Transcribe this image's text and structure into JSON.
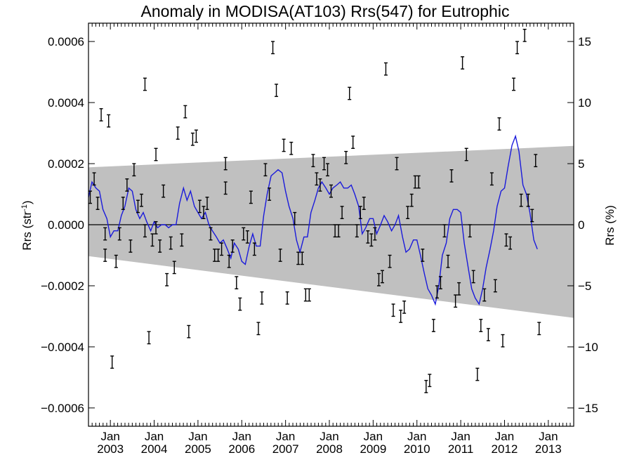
{
  "chart_data": {
    "type": "errorbar-line",
    "title": "Anomaly in MODISA(AT103) Rrs(547) for Eutrophic",
    "ylabel_left": "Rrs (str⁻¹)",
    "ylabel_right": "Rrs (%)",
    "xlim": [
      2002.5,
      2013.58
    ],
    "ylim_left": [
      -0.00066,
      0.00066
    ],
    "ylim_right": [
      -16.5,
      16.5
    ],
    "x_ticks": [
      {
        "top": "Jan",
        "bottom": "2003",
        "x": 2003
      },
      {
        "top": "Jan",
        "bottom": "2004",
        "x": 2004
      },
      {
        "top": "Jan",
        "bottom": "2005",
        "x": 2005
      },
      {
        "top": "Jan",
        "bottom": "2006",
        "x": 2006
      },
      {
        "top": "Jan",
        "bottom": "2007",
        "x": 2007
      },
      {
        "top": "Jan",
        "bottom": "2008",
        "x": 2008
      },
      {
        "top": "Jan",
        "bottom": "2009",
        "x": 2009
      },
      {
        "top": "Jan",
        "bottom": "2010",
        "x": 2010
      },
      {
        "top": "Jan",
        "bottom": "2011",
        "x": 2011
      },
      {
        "top": "Jan",
        "bottom": "2012",
        "x": 2012
      },
      {
        "top": "Jan",
        "bottom": "2013",
        "x": 2013
      }
    ],
    "y_ticks_left": [
      {
        "v": 0.0006,
        "label": "0.0006"
      },
      {
        "v": 0.0004,
        "label": "0.0004"
      },
      {
        "v": 0.0002,
        "label": "0.0002"
      },
      {
        "v": 0.0,
        "label": "0.0000"
      },
      {
        "v": -0.0002,
        "label": "−0.0002"
      },
      {
        "v": -0.0004,
        "label": "−0.0004"
      },
      {
        "v": -0.0006,
        "label": "−0.0006"
      }
    ],
    "y_ticks_right": [
      {
        "v": 15,
        "label": "15"
      },
      {
        "v": 10,
        "label": "10"
      },
      {
        "v": 5,
        "label": "5"
      },
      {
        "v": 0,
        "label": "0"
      },
      {
        "v": -5,
        "label": "−5"
      },
      {
        "v": -10,
        "label": "−10"
      },
      {
        "v": -15,
        "label": "−15"
      }
    ],
    "band": {
      "x": [
        2002.5,
        2013.58
      ],
      "upper": [
        0.000188,
        0.000258
      ],
      "lower": [
        -0.000103,
        -0.000305
      ]
    },
    "zero_line": 0,
    "colors": {
      "band": "#c0c0c0",
      "line": "#1a1adb",
      "errorbar": "#000000",
      "zero": "#000000"
    },
    "error_half_width": 2e-05,
    "anomaly_points": [
      [
        2002.54,
        9e-05
      ],
      [
        2002.63,
        0.00015
      ],
      [
        2002.71,
        7e-05
      ],
      [
        2002.79,
        0.00036
      ],
      [
        2002.88,
        -3e-05
      ],
      [
        2002.88,
        -0.0001
      ],
      [
        2002.96,
        0.00034
      ],
      [
        2003.04,
        -0.00045
      ],
      [
        2003.13,
        -0.00012
      ],
      [
        2003.21,
        -3e-05
      ],
      [
        2003.29,
        7e-05
      ],
      [
        2003.38,
        0.00013
      ],
      [
        2003.46,
        -7e-05
      ],
      [
        2003.54,
        0.00018
      ],
      [
        2003.63,
        6e-05
      ],
      [
        2003.71,
        8e-05
      ],
      [
        2003.79,
        0.00046
      ],
      [
        2003.79,
        -2e-05
      ],
      [
        2003.88,
        -0.00037
      ],
      [
        2003.96,
        -5e-05
      ],
      [
        2004.04,
        0.00023
      ],
      [
        2004.04,
        -1e-05
      ],
      [
        2004.13,
        -7e-05
      ],
      [
        2004.21,
        0.00011
      ],
      [
        2004.29,
        -0.00018
      ],
      [
        2004.38,
        -6e-05
      ],
      [
        2004.46,
        -0.00014
      ],
      [
        2004.54,
        0.0003
      ],
      [
        2004.63,
        -5e-05
      ],
      [
        2004.71,
        0.00037
      ],
      [
        2004.79,
        -0.00035
      ],
      [
        2004.88,
        0.00028
      ],
      [
        2004.96,
        0.00029
      ],
      [
        2005.04,
        6e-05
      ],
      [
        2005.13,
        4e-05
      ],
      [
        2005.21,
        7e-05
      ],
      [
        2005.29,
        -3e-05
      ],
      [
        2005.38,
        -0.0001
      ],
      [
        2005.46,
        -0.0001
      ],
      [
        2005.54,
        -8e-05
      ],
      [
        2005.63,
        0.00012
      ],
      [
        2005.63,
        0.0002
      ],
      [
        2005.71,
        -0.00012
      ],
      [
        2005.79,
        -7e-05
      ],
      [
        2005.88,
        -0.00019
      ],
      [
        2005.96,
        -0.00026
      ],
      [
        2006.04,
        -3e-05
      ],
      [
        2006.13,
        -4e-05
      ],
      [
        2006.21,
        9e-05
      ],
      [
        2006.29,
        -8e-05
      ],
      [
        2006.38,
        -0.00034
      ],
      [
        2006.46,
        -0.00024
      ],
      [
        2006.54,
        0.00018
      ],
      [
        2006.63,
        0.0001
      ],
      [
        2006.71,
        0.00058
      ],
      [
        2006.79,
        0.00044
      ],
      [
        2006.88,
        -0.0001
      ],
      [
        2006.96,
        0.00026
      ],
      [
        2007.04,
        -0.00024
      ],
      [
        2007.13,
        0.00025
      ],
      [
        2007.21,
        2e-05
      ],
      [
        2007.29,
        -0.00011
      ],
      [
        2007.38,
        -0.00011
      ],
      [
        2007.46,
        -0.00023
      ],
      [
        2007.54,
        -0.00023
      ],
      [
        2007.63,
        0.00021
      ],
      [
        2007.71,
        0.00015
      ],
      [
        2007.79,
        0.00013
      ],
      [
        2007.88,
        0.0002
      ],
      [
        2007.96,
        0.00018
      ],
      [
        2008.04,
        0.00011
      ],
      [
        2008.13,
        -2e-05
      ],
      [
        2008.21,
        -2e-05
      ],
      [
        2008.29,
        4e-05
      ],
      [
        2008.38,
        0.00022
      ],
      [
        2008.46,
        0.00043
      ],
      [
        2008.54,
        0.00027
      ],
      [
        2008.63,
        -2e-05
      ],
      [
        2008.71,
        4e-05
      ],
      [
        2008.79,
        7e-05
      ],
      [
        2008.88,
        -4e-05
      ],
      [
        2008.96,
        -5e-05
      ],
      [
        2009.04,
        -3e-05
      ],
      [
        2009.13,
        -0.00018
      ],
      [
        2009.21,
        -0.00017
      ],
      [
        2009.29,
        0.00051
      ],
      [
        2009.38,
        -0.00012
      ],
      [
        2009.46,
        -0.00028
      ],
      [
        2009.54,
        0.0002
      ],
      [
        2009.63,
        -0.0003
      ],
      [
        2009.71,
        -0.00027
      ],
      [
        2009.79,
        4e-05
      ],
      [
        2009.88,
        8e-05
      ],
      [
        2009.96,
        0.00014
      ],
      [
        2010.04,
        0.00014
      ],
      [
        2010.13,
        -0.0001
      ],
      [
        2010.21,
        -0.00053
      ],
      [
        2010.29,
        -0.00051
      ],
      [
        2010.38,
        -0.00033
      ],
      [
        2010.46,
        -0.00022
      ],
      [
        2010.54,
        -0.00019
      ],
      [
        2010.63,
        -2e-05
      ],
      [
        2010.71,
        -0.00012
      ],
      [
        2010.79,
        0.00016
      ],
      [
        2010.88,
        -0.00025
      ],
      [
        2010.96,
        -0.00021
      ],
      [
        2011.04,
        0.00053
      ],
      [
        2011.13,
        0.00023
      ],
      [
        2011.21,
        -2e-05
      ],
      [
        2011.29,
        -0.00017
      ],
      [
        2011.38,
        -0.00049
      ],
      [
        2011.46,
        -0.00033
      ],
      [
        2011.54,
        -0.00023
      ],
      [
        2011.63,
        -0.00036
      ],
      [
        2011.71,
        0.00015
      ],
      [
        2011.79,
        -0.0002
      ],
      [
        2011.88,
        0.00033
      ],
      [
        2011.96,
        -0.00038
      ],
      [
        2012.04,
        -5e-05
      ],
      [
        2012.13,
        -6e-05
      ],
      [
        2012.21,
        0.00046
      ],
      [
        2012.29,
        0.00058
      ],
      [
        2012.38,
        8e-05
      ],
      [
        2012.46,
        0.00062
      ],
      [
        2012.54,
        8e-05
      ],
      [
        2012.63,
        3e-05
      ],
      [
        2012.71,
        0.00021
      ],
      [
        2012.79,
        -0.00034
      ]
    ],
    "running_mean": [
      [
        2002.5,
        9e-05
      ],
      [
        2002.58,
        0.00014
      ],
      [
        2002.67,
        0.00012
      ],
      [
        2002.75,
        0.00011
      ],
      [
        2002.83,
        5e-05
      ],
      [
        2002.92,
        2e-05
      ],
      [
        2003.0,
        -4e-05
      ],
      [
        2003.08,
        -2e-05
      ],
      [
        2003.17,
        -2e-05
      ],
      [
        2003.25,
        3e-05
      ],
      [
        2003.33,
        6e-05
      ],
      [
        2003.42,
        0.00012
      ],
      [
        2003.5,
        0.00011
      ],
      [
        2003.58,
        5e-05
      ],
      [
        2003.67,
        2e-05
      ],
      [
        2003.75,
        4e-05
      ],
      [
        2003.83,
        1e-05
      ],
      [
        2003.92,
        -2e-05
      ],
      [
        2004.0,
        1e-05
      ],
      [
        2004.08,
        -1e-05
      ],
      [
        2004.17,
        0.0
      ],
      [
        2004.25,
        0.0
      ],
      [
        2004.33,
        -1e-05
      ],
      [
        2004.42,
        0.0
      ],
      [
        2004.5,
        0.0
      ],
      [
        2004.58,
        7e-05
      ],
      [
        2004.67,
        0.00012
      ],
      [
        2004.75,
        8e-05
      ],
      [
        2004.83,
        0.00011
      ],
      [
        2004.92,
        6e-05
      ],
      [
        2005.0,
        4e-05
      ],
      [
        2005.08,
        2e-05
      ],
      [
        2005.17,
        4e-05
      ],
      [
        2005.25,
        0.0
      ],
      [
        2005.33,
        -2e-05
      ],
      [
        2005.42,
        -4e-05
      ],
      [
        2005.5,
        -6e-05
      ],
      [
        2005.58,
        -5e-05
      ],
      [
        2005.67,
        -8e-05
      ],
      [
        2005.75,
        -0.00011
      ],
      [
        2005.83,
        -6e-05
      ],
      [
        2005.92,
        -8e-05
      ],
      [
        2006.0,
        -0.00012
      ],
      [
        2006.08,
        -0.00013
      ],
      [
        2006.17,
        -7e-05
      ],
      [
        2006.25,
        -3e-05
      ],
      [
        2006.33,
        -7e-05
      ],
      [
        2006.42,
        -7e-05
      ],
      [
        2006.5,
        3e-05
      ],
      [
        2006.58,
        0.0001
      ],
      [
        2006.67,
        0.00016
      ],
      [
        2006.75,
        0.00017
      ],
      [
        2006.83,
        0.00018
      ],
      [
        2006.92,
        0.00017
      ],
      [
        2007.0,
        0.00011
      ],
      [
        2007.08,
        6e-05
      ],
      [
        2007.17,
        2e-05
      ],
      [
        2007.25,
        -5e-05
      ],
      [
        2007.33,
        -9e-05
      ],
      [
        2007.42,
        -4e-05
      ],
      [
        2007.5,
        -4e-05
      ],
      [
        2007.58,
        4e-05
      ],
      [
        2007.67,
        8e-05
      ],
      [
        2007.75,
        0.00012
      ],
      [
        2007.83,
        0.00014
      ],
      [
        2007.92,
        0.00012
      ],
      [
        2008.0,
        0.0001
      ],
      [
        2008.08,
        0.00012
      ],
      [
        2008.17,
        0.00013
      ],
      [
        2008.25,
        0.00014
      ],
      [
        2008.33,
        0.00012
      ],
      [
        2008.42,
        0.00012
      ],
      [
        2008.5,
        0.00013
      ],
      [
        2008.58,
        0.0001
      ],
      [
        2008.67,
        6e-05
      ],
      [
        2008.75,
        -3e-05
      ],
      [
        2008.83,
        -1e-05
      ],
      [
        2008.92,
        2e-05
      ],
      [
        2009.0,
        2e-05
      ],
      [
        2009.08,
        -3e-05
      ],
      [
        2009.17,
        0.0
      ],
      [
        2009.25,
        3e-05
      ],
      [
        2009.33,
        1e-05
      ],
      [
        2009.42,
        -2e-05
      ],
      [
        2009.5,
        0.0
      ],
      [
        2009.58,
        3e-05
      ],
      [
        2009.67,
        -4e-05
      ],
      [
        2009.75,
        -9e-05
      ],
      [
        2009.83,
        -8e-05
      ],
      [
        2009.92,
        -5e-05
      ],
      [
        2010.0,
        -5e-05
      ],
      [
        2010.08,
        -0.0001
      ],
      [
        2010.17,
        -0.00016
      ],
      [
        2010.25,
        -0.00021
      ],
      [
        2010.33,
        -0.00023
      ],
      [
        2010.42,
        -0.00026
      ],
      [
        2010.5,
        -0.0002
      ],
      [
        2010.58,
        -0.0001
      ],
      [
        2010.67,
        -6e-05
      ],
      [
        2010.75,
        2e-05
      ],
      [
        2010.83,
        5e-05
      ],
      [
        2010.92,
        5e-05
      ],
      [
        2011.0,
        4e-05
      ],
      [
        2011.08,
        -6e-05
      ],
      [
        2011.17,
        -0.00014
      ],
      [
        2011.25,
        -0.00021
      ],
      [
        2011.33,
        -0.00024
      ],
      [
        2011.42,
        -0.00026
      ],
      [
        2011.5,
        -0.00021
      ],
      [
        2011.58,
        -0.00014
      ],
      [
        2011.67,
        -8e-05
      ],
      [
        2011.75,
        -2e-05
      ],
      [
        2011.83,
        6e-05
      ],
      [
        2011.92,
        0.00011
      ],
      [
        2012.0,
        0.00012
      ],
      [
        2012.08,
        0.00019
      ],
      [
        2012.17,
        0.00026
      ],
      [
        2012.25,
        0.00029
      ],
      [
        2012.33,
        0.00024
      ],
      [
        2012.42,
        0.00013
      ],
      [
        2012.5,
        0.0001
      ],
      [
        2012.58,
        4e-05
      ],
      [
        2012.67,
        -5e-05
      ],
      [
        2012.75,
        -8e-05
      ]
    ]
  }
}
